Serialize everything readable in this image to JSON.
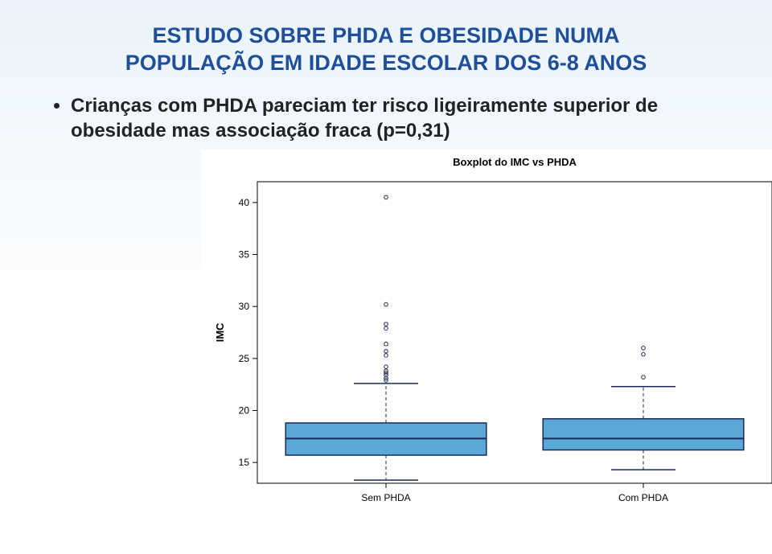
{
  "title_line1": "ESTUDO SOBRE PHDA E OBESIDADE NUMA",
  "title_line2": "POPULAÇÃO EM IDADE ESCOLAR DOS 6-8 ANOS",
  "bullet": "Crianças com PHDA pareciam ter risco ligeiramente superior de obesidade mas associação fraca (p=0,31)",
  "chart": {
    "type": "boxplot",
    "title": "Boxplot do IMC vs PHDA",
    "ylabel": "IMC",
    "ylim": [
      13,
      42
    ],
    "yticks": [
      15,
      20,
      25,
      30,
      35,
      40
    ],
    "categories": [
      "Sem PHDA",
      "Com PHDA"
    ],
    "boxes": [
      {
        "category": "Sem PHDA",
        "ymin": 13.3,
        "q1": 15.7,
        "median": 17.3,
        "q3": 18.8,
        "ymax": 22.6,
        "outliers": [
          22.9,
          23.1,
          23.4,
          23.6,
          23.8,
          24.2,
          25.3,
          25.7,
          26.4,
          27.9,
          28.3,
          30.2,
          40.5
        ],
        "fill": "#5aa8d6",
        "border": "#1a2a5a"
      },
      {
        "category": "Com PHDA",
        "ymin": 14.3,
        "q1": 16.2,
        "median": 17.3,
        "q3": 19.2,
        "ymax": 22.3,
        "outliers": [
          23.2,
          25.4,
          26.0
        ],
        "fill": "#5aa8d6",
        "border": "#1a2a5a"
      }
    ],
    "background_color": "#ffffff",
    "axis_color": "#000000",
    "whisker_color": "#1a2a5a",
    "median_color": "#1a2a5a",
    "outlier_color": "#1a2a5a",
    "title_fontsize": 13,
    "label_fontsize": 13,
    "tick_fontsize": 12
  }
}
